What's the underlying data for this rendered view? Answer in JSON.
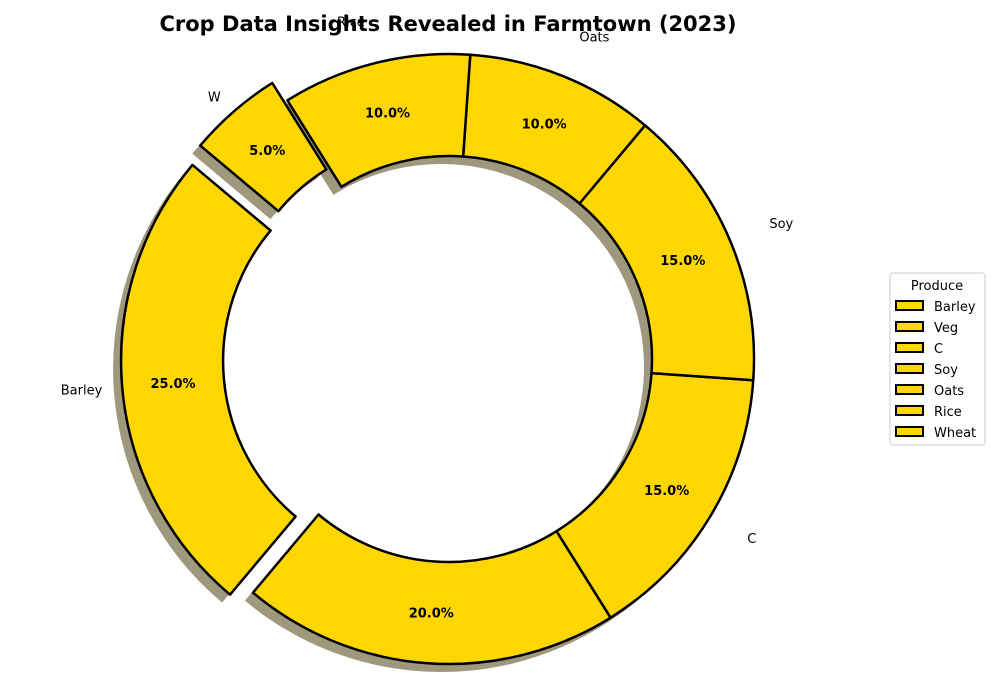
{
  "chart_data": {
    "type": "pie",
    "variant": "donut",
    "title": "Crop Data Insights Revealed in Farmtown (2023)",
    "slices": [
      {
        "label": "Barley",
        "value": 25.0,
        "pct_label": "25.0%",
        "exploded": true
      },
      {
        "label": "Veg",
        "value": 20.0,
        "pct_label": "20.0%",
        "exploded": false
      },
      {
        "label": "C",
        "value": 15.0,
        "pct_label": "15.0%",
        "exploded": false
      },
      {
        "label": "Soy",
        "value": 15.0,
        "pct_label": "15.0%",
        "exploded": false
      },
      {
        "label": "Oats",
        "value": 10.0,
        "pct_label": "10.0%",
        "exploded": false
      },
      {
        "label": "Rice",
        "value": 10.0,
        "pct_label": "10.0%",
        "exploded": false
      },
      {
        "label": "W",
        "value": 5.0,
        "pct_label": "5.0%",
        "exploded": true
      }
    ],
    "legend": {
      "title": "Produce",
      "placement": "right",
      "entries": [
        "Barley",
        "Veg",
        "C",
        "Soy",
        "Oats",
        "Rice",
        "Wheat"
      ]
    },
    "colors": {
      "slice_fill": "#FFD700",
      "slice_edge": "#000000",
      "shadow": "#7f7550"
    },
    "start_angle_deg": 140,
    "shadow": true
  }
}
